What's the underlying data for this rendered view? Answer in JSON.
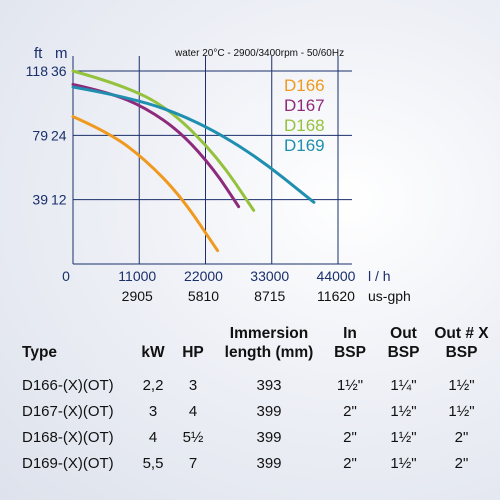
{
  "chart_data": {
    "type": "line",
    "note": "water 20°C - 2900/3400rpm - 50/60Hz",
    "y_unit_ft": "ft",
    "y_unit_m": "m",
    "y_ticks_ft": [
      "118",
      "79",
      "39"
    ],
    "y_ticks_m": [
      "36",
      "24",
      "12"
    ],
    "yticks_m_values": [
      36,
      24,
      12
    ],
    "x_origin_label": "0",
    "x_ticks_lh": [
      "11000",
      "22000",
      "33000",
      "44000"
    ],
    "xticks_lh_values": [
      11000,
      22000,
      33000,
      44000
    ],
    "x_unit_lh": "l / h",
    "x_ticks_gph": [
      "2905",
      "5810",
      "8715",
      "11620"
    ],
    "x_unit_gph": "us-gph",
    "xlim": [
      0,
      44000
    ],
    "ylim": [
      0,
      38
    ],
    "series": [
      {
        "name": "D166",
        "color": "#ef9a1e",
        "x": [
          0,
          6000,
          12000,
          18000,
          24000
        ],
        "y": [
          27.5,
          24.5,
          19.5,
          12.5,
          2.5
        ]
      },
      {
        "name": "D167",
        "color": "#8e2a7c",
        "x": [
          0,
          6000,
          12000,
          18000,
          23500,
          27500
        ],
        "y": [
          33.5,
          32.0,
          29.2,
          24.5,
          17.5,
          10.7
        ]
      },
      {
        "name": "D168",
        "color": "#94c23c",
        "x": [
          0,
          8000,
          16000,
          24000,
          30000
        ],
        "y": [
          36.0,
          33.5,
          29.0,
          20.0,
          10.0
        ]
      },
      {
        "name": "D169",
        "color": "#1f8fb0",
        "x": [
          0,
          10000,
          20000,
          30000,
          40000
        ],
        "y": [
          33.0,
          31.0,
          27.0,
          20.5,
          11.5
        ]
      }
    ]
  },
  "table": {
    "headers": [
      {
        "line1": "Type",
        "line2": ""
      },
      {
        "line1": "kW",
        "line2": ""
      },
      {
        "line1": "HP",
        "line2": ""
      },
      {
        "line1": "Immersion",
        "line2": "length (mm)"
      },
      {
        "line1": "In",
        "line2": "BSP"
      },
      {
        "line1": "Out",
        "line2": "BSP"
      },
      {
        "line1": "Out # X",
        "line2": "BSP"
      }
    ],
    "rows": [
      [
        "D166-(X)(OT)",
        "2,2",
        "3",
        "393",
        "1½\"",
        "1¼\"",
        "1½\""
      ],
      [
        "D167-(X)(OT)",
        "3",
        "4",
        "399",
        "2\"",
        "1½\"",
        "1½\""
      ],
      [
        "D168-(X)(OT)",
        "4",
        "5½",
        "399",
        "2\"",
        "1½\"",
        "2\""
      ],
      [
        "D169-(X)(OT)",
        "5,5",
        "7",
        "399",
        "2\"",
        "1½\"",
        "2\""
      ]
    ]
  }
}
